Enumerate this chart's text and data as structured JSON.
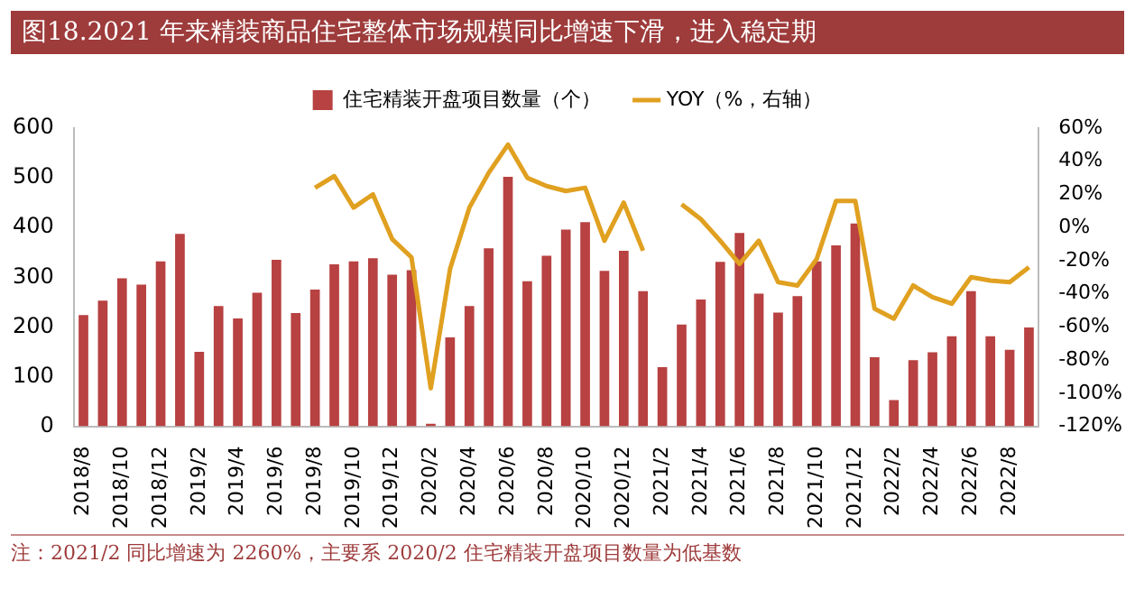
{
  "chart_data": {
    "type": "bar",
    "title": "图18.2021 年来精装商品住宅整体市场规模同比增速下滑，进入稳定期",
    "categories": [
      "2018/8",
      null,
      "2018/10",
      null,
      "2018/12",
      null,
      "2019/2",
      null,
      "2019/4",
      null,
      "2019/6",
      null,
      "2019/8",
      null,
      "2019/10",
      null,
      "2019/12",
      null,
      "2020/2",
      null,
      "2020/4",
      null,
      "2020/6",
      null,
      "2020/8",
      null,
      "2020/10",
      null,
      "2020/12",
      null,
      "2021/2",
      null,
      "2021/4",
      null,
      "2021/6",
      null,
      "2021/8",
      null,
      "2021/10",
      null,
      "2021/12",
      null,
      "2022/2",
      null,
      "2022/4",
      null,
      "2022/6",
      null,
      "2022/8",
      null
    ],
    "series": [
      {
        "name": "住宅精装开盘项目数量（个）",
        "color": "#b84141",
        "values": [
          224,
          253,
          298,
          285,
          332,
          387,
          150,
          242,
          217,
          269,
          335,
          228,
          275,
          326,
          332,
          338,
          305,
          314,
          5,
          179,
          242,
          358,
          502,
          292,
          343,
          396,
          411,
          313,
          353,
          272,
          119,
          205,
          255,
          331,
          389,
          267,
          229,
          262,
          332,
          364,
          408,
          139,
          53,
          133,
          149,
          181,
          272,
          181,
          154,
          199
        ]
      },
      {
        "name": "YOY（%，右轴）",
        "type": "line",
        "axis": "y2",
        "color": "#e0a020",
        "values": [
          null,
          null,
          null,
          null,
          null,
          null,
          null,
          null,
          null,
          null,
          null,
          null,
          24,
          31,
          12,
          20,
          -7,
          -18,
          -97,
          -25,
          12,
          33,
          50,
          30,
          25,
          22,
          24,
          -8,
          15,
          -14,
          null,
          14,
          5,
          -8,
          -22,
          -8,
          -33,
          -35,
          -19,
          16,
          16,
          -49,
          -55,
          -35,
          -42,
          -46,
          -30,
          -32,
          -33,
          -24
        ]
      }
    ],
    "ylim": [
      0,
      600
    ],
    "yticks": [
      0,
      100,
      200,
      300,
      400,
      500,
      600
    ],
    "y2lim": [
      -120,
      60
    ],
    "y2ticks": [
      {
        "value": -120,
        "label": "-120%"
      },
      {
        "value": -100,
        "label": "-100%"
      },
      {
        "value": -80,
        "label": "-80%"
      },
      {
        "value": -60,
        "label": "-60%"
      },
      {
        "value": -40,
        "label": "-40%"
      },
      {
        "value": -20,
        "label": "-20%"
      },
      {
        "value": 0,
        "label": "0%"
      },
      {
        "value": 20,
        "label": "20%"
      },
      {
        "value": 40,
        "label": "40%"
      },
      {
        "value": 60,
        "label": "60%"
      }
    ],
    "grid": false,
    "legend": "top",
    "marker": "none",
    "line_style": "solid",
    "annotations": [
      "注：2021/2 同比增速为 2260%，主要系 2020/2 住宅精装开盘项目数量为低基数"
    ]
  }
}
